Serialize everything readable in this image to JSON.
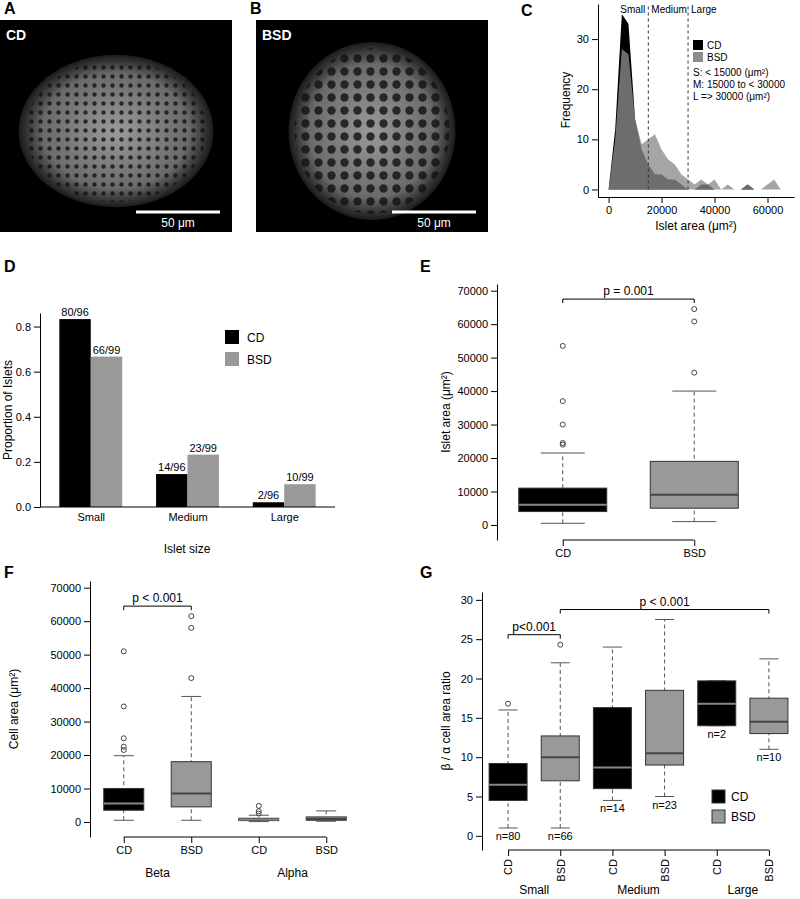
{
  "chart_data": [
    {
      "type": "image",
      "title": "A",
      "annotations": [
        "CD",
        "50 μm"
      ]
    },
    {
      "type": "image",
      "title": "B",
      "annotations": [
        "BSD",
        "50 μm"
      ]
    },
    {
      "type": "area",
      "title": "C",
      "xlabel": "Islet area (μm²)",
      "ylabel": "Frequency",
      "x": [
        0,
        2500,
        5000,
        7500,
        10000,
        12500,
        15000,
        17500,
        20000,
        22500,
        25000,
        27500,
        30000,
        32500,
        35000,
        37500,
        40000,
        42500,
        45000,
        47500,
        50000,
        52500,
        55000,
        57500,
        60000,
        62500,
        65000
      ],
      "series": [
        {
          "name": "CD",
          "color": "#000000",
          "values": [
            0,
            12,
            35,
            33,
            14,
            8,
            5,
            3,
            3,
            2,
            2,
            1,
            0,
            0,
            1,
            1,
            0,
            0,
            0,
            0,
            0,
            1,
            0,
            0,
            0,
            0,
            0
          ]
        },
        {
          "name": "BSD",
          "color": "#8c8c8c",
          "values": [
            0,
            10,
            28,
            27,
            14,
            9,
            10,
            11,
            8,
            6,
            5,
            3,
            2,
            1,
            2,
            1,
            2,
            0,
            1,
            0,
            0,
            1,
            0,
            0,
            1,
            2,
            0
          ]
        }
      ],
      "xlim": [
        -4000,
        70000
      ],
      "xticks": [
        0,
        20000,
        40000,
        60000
      ],
      "ylim": [
        -1.5,
        37
      ],
      "yticks": [
        0,
        10,
        20,
        30
      ],
      "thresholds": [
        15000,
        30000
      ],
      "annotations": [
        "Small",
        "Medium",
        "Large",
        "S: < 15000 (μm²)",
        "M: 15000 to < 30000",
        "L => 30000 (μm²)"
      ],
      "legend": "upper right"
    },
    {
      "type": "bar",
      "title": "D",
      "xlabel": "Islet size",
      "ylabel": "Proportion of Islets",
      "categories": [
        "Small",
        "Medium",
        "Large"
      ],
      "series": [
        {
          "name": "CD",
          "color": "#000000",
          "values": [
            0.833,
            0.146,
            0.021
          ],
          "value_labels": [
            "80/96",
            "14/96",
            "2/96"
          ]
        },
        {
          "name": "BSD",
          "color": "#999999",
          "values": [
            0.667,
            0.232,
            0.101
          ],
          "value_labels": [
            "66/99",
            "23/99",
            "10/99"
          ]
        }
      ],
      "ylim": [
        0,
        0.86
      ],
      "yticks": [
        {
          "value": 0,
          "label": "0.0"
        },
        0.2,
        0.4,
        0.6,
        0.8
      ],
      "data_labels": true,
      "legend": "upper right"
    },
    {
      "type": "box",
      "title": "E",
      "ylabel": "Islet area (μm²)",
      "categories": [
        "CD",
        "BSD"
      ],
      "colors": [
        "#000000",
        "#999999"
      ],
      "whisker_low": [
        500,
        1000
      ],
      "q1": [
        4000,
        5000
      ],
      "median": [
        6000,
        9000
      ],
      "q3": [
        11000,
        19000
      ],
      "whisker_high": [
        21500,
        40000
      ],
      "outliers": [
        [
          24000,
          24500,
          30000,
          37000,
          53500
        ],
        [
          45500,
          60800,
          64500
        ]
      ],
      "ylim": [
        -4500,
        72000
      ],
      "yticks": [
        0,
        10000,
        20000,
        30000,
        40000,
        50000,
        60000,
        70000
      ],
      "annotations": [
        "p = 0.001"
      ]
    },
    {
      "type": "box",
      "title": "F",
      "ylabel": "Cell area (μm²)",
      "categories": [
        "CD",
        "BSD",
        "CD",
        "BSD"
      ],
      "x_groups": [
        "Beta",
        "Alpha"
      ],
      "colors": [
        "#000000",
        "#999999",
        "#000000",
        "#999999"
      ],
      "whisker_low": [
        500,
        500,
        100,
        200
      ],
      "q1": [
        3500,
        4500,
        400,
        500
      ],
      "median": [
        5500,
        8500,
        700,
        900
      ],
      "q3": [
        10000,
        18000,
        1100,
        1500
      ],
      "whisker_high": [
        19800,
        37500,
        2000,
        3300
      ],
      "outliers": [
        [
          21500,
          22500,
          25000,
          34500,
          51000
        ],
        [
          43000,
          58000,
          61500
        ],
        [
          2500,
          3200,
          4800
        ],
        []
      ],
      "ylim": [
        -4500,
        72000
      ],
      "yticks": [
        0,
        10000,
        20000,
        30000,
        40000,
        50000,
        60000,
        70000
      ],
      "annotations": [
        "p < 0.001"
      ]
    },
    {
      "type": "box",
      "title": "G",
      "ylabel": "β / α cell area ratio",
      "categories": [
        "CD",
        "BSD",
        "CD",
        "BSD",
        "CD",
        "BSD"
      ],
      "x_groups": [
        "Small",
        "Medium",
        "Large"
      ],
      "colors": [
        "#000000",
        "#999999",
        "#000000",
        "#999999",
        "#000000",
        "#999999"
      ],
      "whisker_low": [
        1,
        1,
        4.5,
        5,
        14,
        11
      ],
      "q1": [
        4.5,
        7,
        6,
        9,
        14,
        13
      ],
      "median": [
        6.5,
        10,
        8.7,
        10.5,
        16.8,
        14.5
      ],
      "q3": [
        9.2,
        12.7,
        16.3,
        18.5,
        19.7,
        17.5
      ],
      "whisker_high": [
        16,
        22,
        24,
        27.5,
        19.7,
        22.5
      ],
      "outliers": [
        [
          16.8
        ],
        [
          24.3
        ],
        [],
        [],
        [],
        []
      ],
      "n_labels": [
        "n=80",
        "n=66",
        "n=14",
        "n=23",
        "n=2",
        "n=10"
      ],
      "ylim": [
        -1.8,
        31
      ],
      "yticks": [
        0,
        5,
        10,
        15,
        20,
        25,
        30
      ],
      "annotations": [
        "p<0.001",
        "p < 0.001"
      ],
      "legend": "lower right"
    }
  ]
}
